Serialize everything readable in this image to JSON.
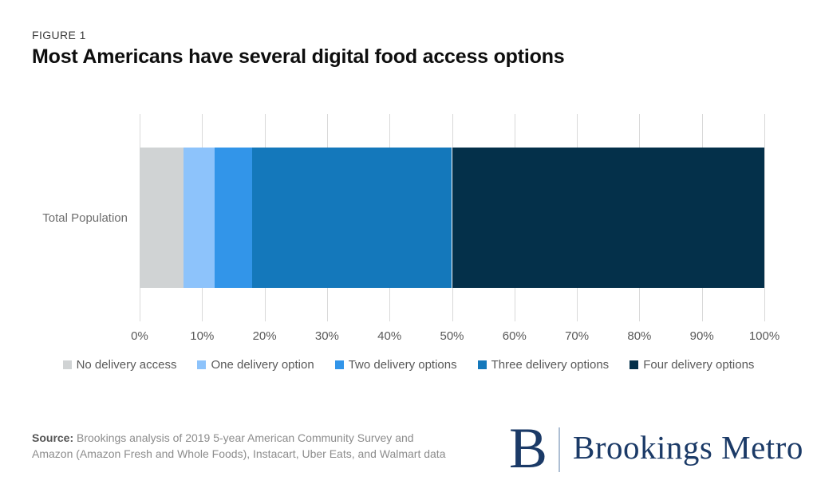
{
  "figure_label": "FIGURE 1",
  "title": "Most Americans have several digital food access options",
  "chart_data": {
    "type": "bar",
    "subtype": "horizontal-stacked",
    "category_label": "Total Population",
    "series": [
      {
        "name": "No delivery access",
        "value": 7,
        "color": "#d0d3d4"
      },
      {
        "name": "One delivery option",
        "value": 5,
        "color": "#8dc3fb"
      },
      {
        "name": "Two delivery options",
        "value": 6,
        "color": "#3295e9"
      },
      {
        "name": "Three delivery options",
        "value": 32,
        "color": "#1478bb"
      },
      {
        "name": "Four delivery options",
        "value": 50,
        "color": "#04304a"
      }
    ],
    "x_ticks": [
      "0%",
      "10%",
      "20%",
      "30%",
      "40%",
      "50%",
      "60%",
      "70%",
      "80%",
      "90%",
      "100%"
    ],
    "xlim": [
      0,
      100
    ],
    "grid": true,
    "gridline_color": "#d9d9d9",
    "legend_position": "bottom"
  },
  "source": {
    "label": "Source:",
    "lines": [
      "Brookings analysis of 2019 5-year American Community Survey and",
      "Amazon (Amazon Fresh and Whole Foods), Instacart, Uber Eats, and Walmart data"
    ]
  },
  "logo": {
    "monogram": "B",
    "wordmark": "Brookings Metro",
    "color": "#1b3a67"
  }
}
